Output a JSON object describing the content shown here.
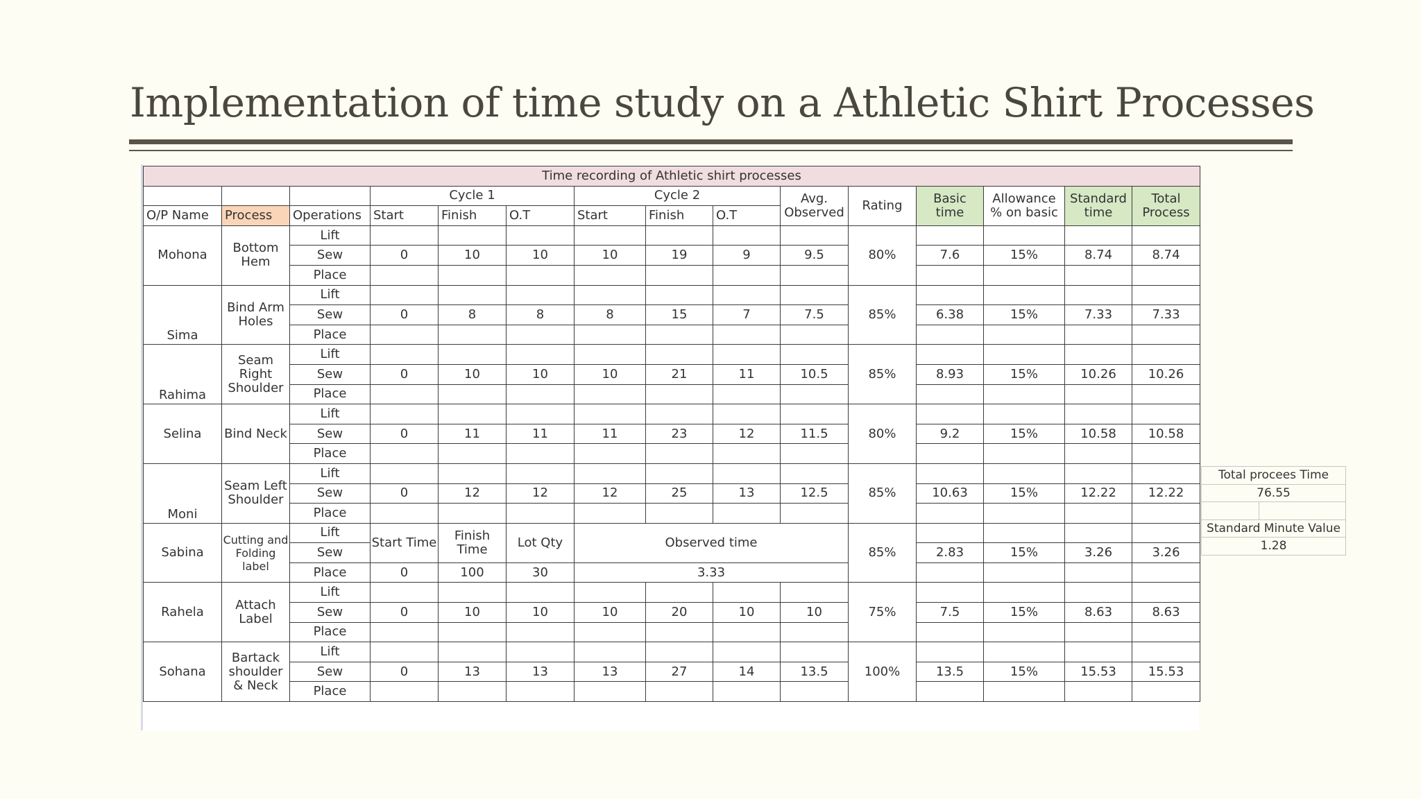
{
  "slide": {
    "title": "Implementation of time study on a Athletic Shirt Processes"
  },
  "table": {
    "title": "Time recording of Athletic shirt processes",
    "header": {
      "cycle1": "Cycle 1",
      "cycle2": "Cycle 2",
      "avg_line1": "Avg.",
      "avg_line2": "Observed",
      "rating": "Rating",
      "basic_line1": "Basic",
      "basic_line2": "time",
      "allow_line1": "Allowance",
      "allow_line2": "% on basic",
      "std_line1": "Standard",
      "std_line2": "time",
      "total_line1": "Total",
      "total_line2": "Process",
      "op_name": "O/P Name",
      "process": "Process",
      "operations": "Operations",
      "start": "Start",
      "finish": "Finish",
      "ot": "O.T"
    },
    "ops": [
      "Lift",
      "Sew",
      "Place"
    ],
    "rows": [
      {
        "name": "Mohona",
        "process": "Bottom Hem",
        "c1_start": "0",
        "c1_finish": "10",
        "c1_ot": "10",
        "c2_start": "10",
        "c2_finish": "19",
        "c2_ot": "9",
        "avg": "9.5",
        "rating": "80%",
        "basic": "7.6",
        "allowance": "15%",
        "standard": "8.74",
        "total": "8.74"
      },
      {
        "name": "Sima",
        "process": "Bind Arm Holes",
        "c1_start": "0",
        "c1_finish": "8",
        "c1_ot": "8",
        "c2_start": "8",
        "c2_finish": "15",
        "c2_ot": "7",
        "avg": "7.5",
        "rating": "85%",
        "basic": "6.38",
        "allowance": "15%",
        "standard": "7.33",
        "total": "7.33"
      },
      {
        "name": "Rahima",
        "process": "Seam Right Shoulder",
        "c1_start": "0",
        "c1_finish": "10",
        "c1_ot": "10",
        "c2_start": "10",
        "c2_finish": "21",
        "c2_ot": "11",
        "avg": "10.5",
        "rating": "85%",
        "basic": "8.93",
        "allowance": "15%",
        "standard": "10.26",
        "total": "10.26"
      },
      {
        "name": "Selina",
        "process": "Bind Neck",
        "c1_start": "0",
        "c1_finish": "11",
        "c1_ot": "11",
        "c2_start": "11",
        "c2_finish": "23",
        "c2_ot": "12",
        "avg": "11.5",
        "rating": "80%",
        "basic": "9.2",
        "allowance": "15%",
        "standard": "10.58",
        "total": "10.58"
      },
      {
        "name": "Moni",
        "process": "Seam Left Shoulder",
        "c1_start": "0",
        "c1_finish": "12",
        "c1_ot": "12",
        "c2_start": "12",
        "c2_finish": "25",
        "c2_ot": "13",
        "avg": "12.5",
        "rating": "85%",
        "basic": "10.63",
        "allowance": "15%",
        "standard": "12.22",
        "total": "12.22"
      },
      {
        "name": "Sabina",
        "process": "Cutting and Folding label",
        "start_time_label": "Start Time",
        "finish_time_label": "Finish Time",
        "lot_qty_label": "Lot Qty",
        "observed_time_label": "Observed time",
        "start": "0",
        "finish": "100",
        "lot_qty": "30",
        "observed_time": "3.33",
        "rating": "85%",
        "basic": "2.83",
        "allowance": "15%",
        "standard": "3.26",
        "total": "3.26"
      },
      {
        "name": "Rahela",
        "process": "Attach Label",
        "c1_start": "0",
        "c1_finish": "10",
        "c1_ot": "10",
        "c2_start": "10",
        "c2_finish": "20",
        "c2_ot": "10",
        "avg": "10",
        "rating": "75%",
        "basic": "7.5",
        "allowance": "15%",
        "standard": "8.63",
        "total": "8.63"
      },
      {
        "name": "Sohana",
        "process": "Bartack shoulder & Neck",
        "c1_start": "0",
        "c1_finish": "13",
        "c1_ot": "13",
        "c2_start": "13",
        "c2_finish": "27",
        "c2_ot": "14",
        "avg": "13.5",
        "rating": "100%",
        "basic": "13.5",
        "allowance": "15%",
        "standard": "15.53",
        "total": "15.53"
      }
    ]
  },
  "summary": {
    "total_label": "Total procees Time",
    "total_value": "76.55",
    "smv_label": "Standard Minute Value",
    "smv_value": "1.28"
  }
}
